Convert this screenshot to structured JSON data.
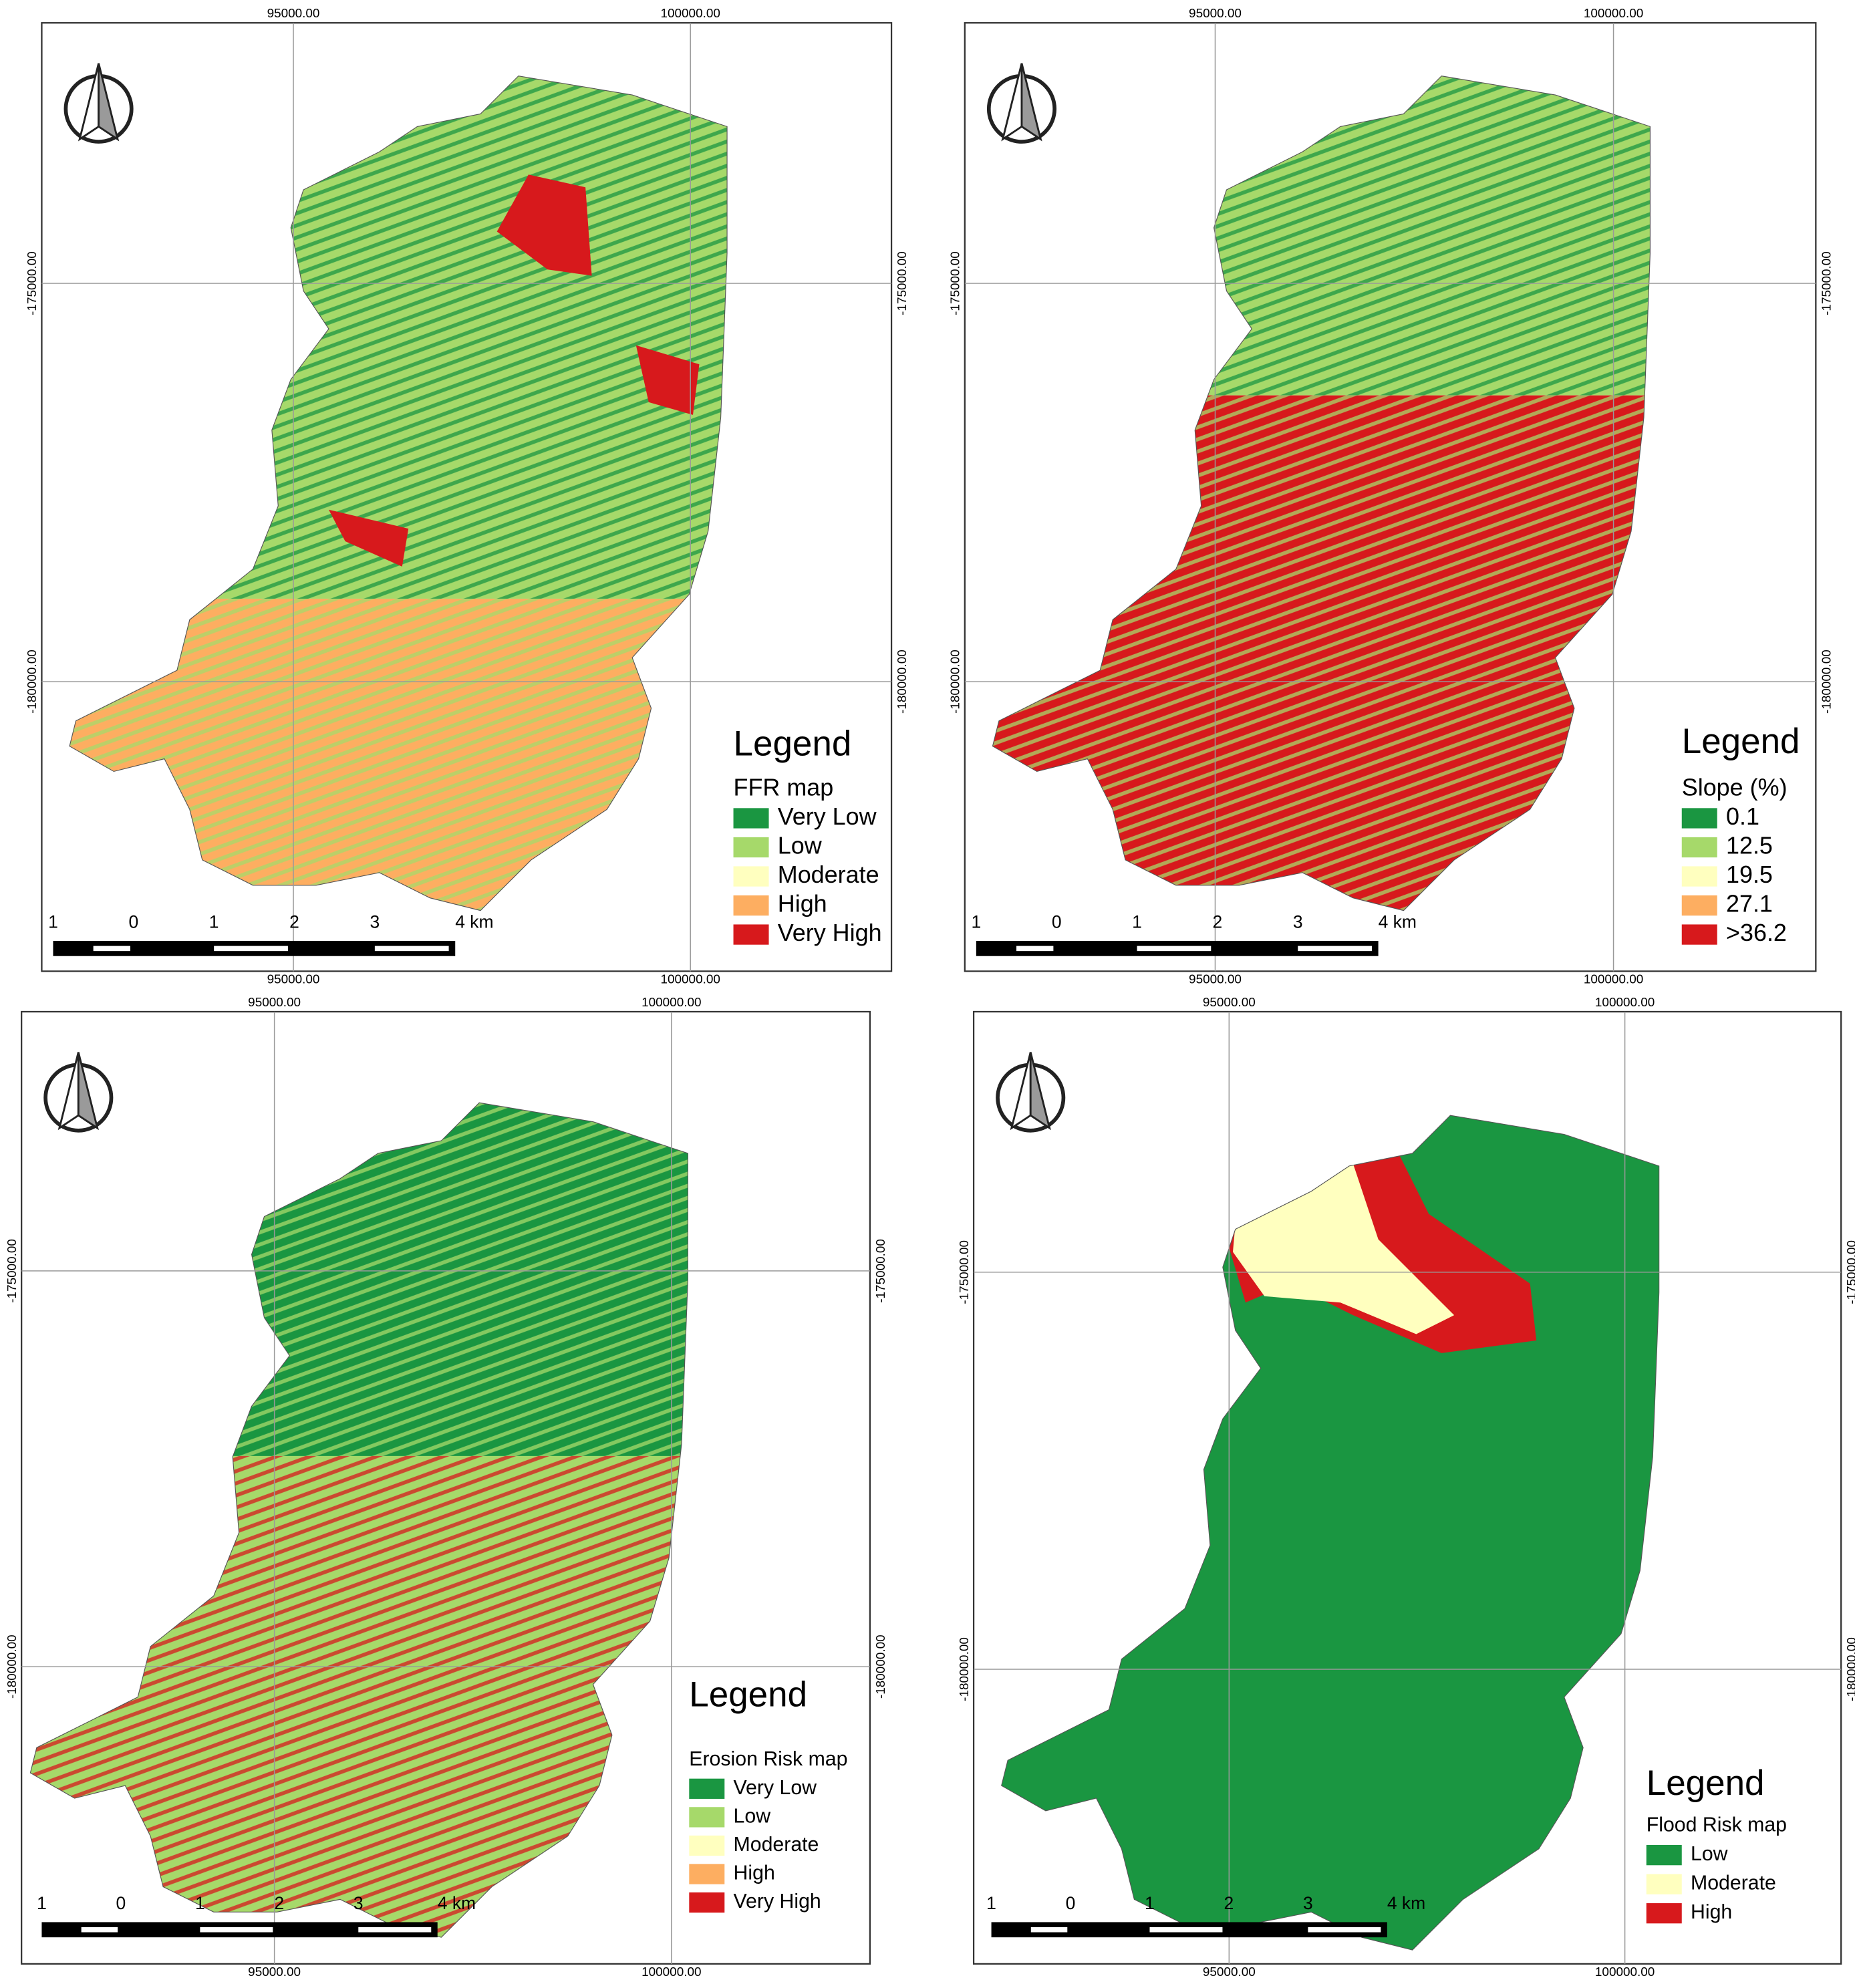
{
  "panels": [
    {
      "grid_x": [
        "95000.00",
        "100000.00"
      ],
      "grid_y": [
        "-175000.00",
        "-180000.00"
      ],
      "legend": {
        "heading": "Legend",
        "title": "FFR map",
        "items": [
          {
            "label": "Very Low",
            "color": "#1a9641"
          },
          {
            "label": "Low",
            "color": "#a6d96a"
          },
          {
            "label": "Moderate",
            "color": "#ffffbf"
          },
          {
            "label": "High",
            "color": "#fdae61"
          },
          {
            "label": "Very High",
            "color": "#d7191c"
          }
        ]
      },
      "scale_labels": [
        "1",
        "0",
        "1",
        "2",
        "3",
        "4 km"
      ]
    },
    {
      "grid_x": [
        "95000.00",
        "100000.00"
      ],
      "grid_y": [
        "-175000.00",
        "-180000.00"
      ],
      "legend": {
        "heading": "Legend",
        "title": "Slope (%)",
        "items": [
          {
            "label": "0.1",
            "color": "#1a9641"
          },
          {
            "label": "12.5",
            "color": "#a6d96a"
          },
          {
            "label": "19.5",
            "color": "#ffffbf"
          },
          {
            "label": "27.1",
            "color": "#fdae61"
          },
          {
            "label": ">36.2",
            "color": "#d7191c"
          }
        ]
      },
      "scale_labels": [
        "1",
        "0",
        "1",
        "2",
        "3",
        "4 km"
      ]
    },
    {
      "grid_x": [
        "95000.00",
        "100000.00"
      ],
      "grid_y": [
        "-175000.00",
        "-180000.00"
      ],
      "legend": {
        "heading": "Legend",
        "title": "Erosion Risk map",
        "items": [
          {
            "label": "Very Low",
            "color": "#1a9641"
          },
          {
            "label": "Low",
            "color": "#a6d96a"
          },
          {
            "label": "Moderate",
            "color": "#ffffbf"
          },
          {
            "label": "High",
            "color": "#fdae61"
          },
          {
            "label": "Very High",
            "color": "#d7191c"
          }
        ]
      },
      "scale_labels": [
        "1",
        "0",
        "1",
        "2",
        "3",
        "4 km"
      ]
    },
    {
      "grid_x": [
        "95000.00",
        "100000.00"
      ],
      "grid_y": [
        "-175000.00",
        "-180000.00"
      ],
      "legend": {
        "heading": "Legend",
        "title": "Flood Risk map",
        "items": [
          {
            "label": "Low",
            "color": "#1a9641"
          },
          {
            "label": "Moderate",
            "color": "#ffffbf"
          },
          {
            "label": "High",
            "color": "#d7191c"
          }
        ]
      },
      "scale_labels": [
        "1",
        "0",
        "1",
        "2",
        "3",
        "4 km"
      ]
    }
  ]
}
